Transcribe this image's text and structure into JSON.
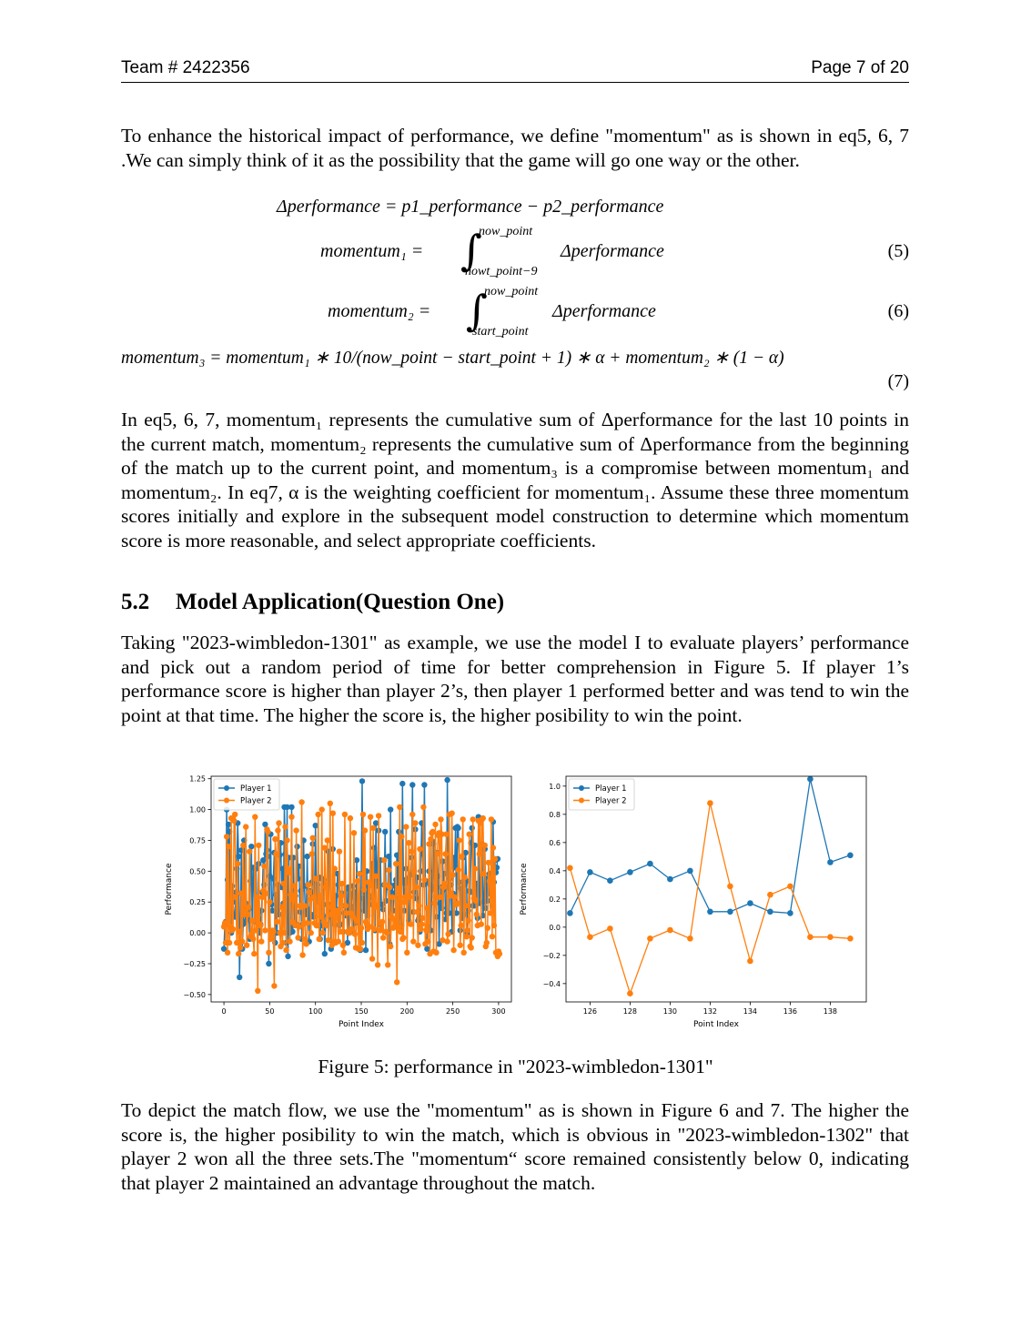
{
  "header": {
    "left": "Team # 2422356",
    "right": "Page 7 of 20"
  },
  "intro": "To enhance the historical impact of performance, we define \"momentum\" as is shown in eq5, 6, 7 .We can simply think of it as the possibility that the game will go one way or the other.",
  "equations": {
    "delta": "Δperformance = p1_performance − p2_performance",
    "m1_lhs": "momentum₁ =",
    "m1_upper": "now_point",
    "m1_lower": "nowt_point−9",
    "m1_rhs": "Δperformance",
    "m1_num": "(5)",
    "m2_lhs": "momentum₂ =",
    "m2_upper": "now_point",
    "m2_lower": "start_point",
    "m2_rhs": "Δperformance",
    "m2_num": "(6)",
    "m3": "momentum₃ = momentum₁ ∗ 10/(now_point − start_point + 1) ∗ α + momentum₂ ∗ (1 − α)",
    "m3_num": "(7)"
  },
  "explain": "In eq5, 6, 7, momentum₁ represents the cumulative sum of Δperformance for the last 10 points in the current match, momentum₂ represents the cumulative sum of Δperformance from the beginning of the match up to the current point, and momentum₃ is a compromise between momentum₁ and momentum₂. In eq7, α is the weighting coefficient for momentum₁. Assume these three momentum scores initially and explore in the subsequent model construction to determine which momentum score is more reasonable, and select appropriate coefficients.",
  "section": {
    "number": "5.2",
    "title": "Model Application(Question One)"
  },
  "application": "Taking \"2023-wimbledon-1301\" as example, we use the model I to evaluate players’ performance and pick out a random period of time for better comprehension in Figure 5. If player 1’s performance score is higher than player 2’s, then player 1 performed better and was tend to win the point at that time. The higher the score is, the higher posibility to win the point.",
  "caption": "Figure 5: performance in \"2023-wimbledon-1301\"",
  "closing": "To depict the match flow, we use the \"momentum\" as is shown in Figure 6 and 7. The higher the score is, the higher posibility to win the match, which is obvious in \"2023-wimbledon-1302\" that player 2 won all the three sets.The \"momentum“ score remained consistently below 0, indicating that player 2 maintained an advantage throughout the match.",
  "colors": {
    "player1": "#1f77b4",
    "player2": "#ff7f0e"
  },
  "chart_data": [
    {
      "type": "line",
      "xlabel": "Point Index",
      "ylabel": "Performance",
      "xlim": [
        -14,
        314
      ],
      "ylim": [
        -0.56,
        1.27
      ],
      "xticks": [
        0,
        50,
        100,
        150,
        200,
        250,
        300
      ],
      "yticks": [
        -0.5,
        -0.25,
        0.0,
        0.25,
        0.5,
        0.75,
        1.0,
        1.25
      ],
      "ytick_labels": [
        "−0.50",
        "−0.25",
        "0.00",
        "0.25",
        "0.50",
        "0.75",
        "1.00",
        "1.25"
      ],
      "legend": "top-left",
      "series": [
        {
          "name": "Player 1",
          "x_start": 0,
          "values": [
            -0.13,
            0.07,
            0.09,
            1.0,
            0.43,
            0.88,
            0.82,
            0.11,
            0.0,
            0.38,
            0.25,
            0.14,
            0.13,
            0.33,
            0.52,
            0.89,
            0.62,
            -0.36,
            0.07,
            0.67,
            -0.13,
            0.07,
            0.75,
            0.09,
            0.24,
            0.18,
            0.11,
            0.19,
            -0.05,
            0.42,
            0.7,
            -0.04,
            0.53,
            0.4,
            0.09,
            0.52,
            0.19,
            0.16,
            0.56,
            0.0,
            0.07,
            0.18,
            0.33,
            0.59,
            0.39,
            0.88,
            0.64,
            0.67,
            0.62,
            -0.25,
            0.46,
            0.8,
            0.23,
            0.18,
            0.44,
            0.65,
            -0.08,
            0.31,
            -0.0,
            0.39,
            0.15,
            0.63,
            0.73,
            0.37,
            0.52,
            0.24,
            1.02,
            0.64,
            -0.08,
            1.02,
            -0.19,
            0.61,
            0.0,
            0.04,
            1.02,
            0.01,
            0.61,
            0.09,
            0.3,
            0.07,
            0.7,
            0.44,
            0.54,
            0.17,
            0.34,
            -0.05,
            0.07,
            0.75,
            0.38,
            0.15,
            0.16,
            0.62,
            0.19,
            -0.07,
            0.34,
            0.15,
            0.41,
            0.72,
            0.13,
            0.32,
            0.87,
            0.25,
            0.39,
            0.28,
            0.45,
            -0.05,
            0.06,
            0.44,
            0.14,
            0.43,
            -0.17,
            0.07,
            0.23,
            0.39,
            0.66,
            0.23,
            0.2,
            -0.13,
            0.12,
            0.68,
            0.09,
            0.07,
            0.3,
            0.19,
            0.48,
            0.39,
            0.06,
            0.07,
            0.32,
            0.32,
            0.01,
            0.16,
            0.22,
            0.14,
            0.36,
            -0.08,
            0.37,
            -0.0,
            0.22,
            0.19,
            0.31,
            0.38,
            0.0,
            0.33,
            0.08,
            0.59,
            0.25,
            0.23,
            0.28,
            -0.14,
            0.48,
            1.23,
            0.28,
            0.18,
            0.33,
            -0.14,
            0.5,
            0.14,
            0.38,
            0.23,
            0.29,
            0.3,
            0.56,
            0.38,
            0.69,
            0.02,
            0.89,
            0.38,
            0.53,
            0.83,
            0.07,
            0.59,
            0.23,
            0.23,
            0.19,
            0.39,
            0.82,
            0.26,
            0.37,
            0.37,
            0.62,
            -0.09,
            1.0,
            0.12,
            0.38,
            0.18,
            0.32,
            0.39,
            0.43,
            0.63,
            0.28,
            0.82,
            0.21,
            0.01,
            0.06,
            1.21,
            0.43,
            0.18,
            0.4,
            0.52,
            0.41,
            0.44,
            0.1,
            0.17,
            0.47,
            0.61,
            1.2,
            0.17,
            0.33,
            0.84,
            0.28,
            0.45,
            0.1,
            0.12,
            0.01,
            0.5,
            0.89,
            0.64,
            0.39,
            1.2,
            0.41,
            0.42,
            -0.13,
            0.05,
            0.5,
            0.39,
            0.02,
            0.35,
            0.74,
            0.72,
            0.37,
            0.29,
            0.13,
            0.65,
            0.46,
            -0.09,
            0.24,
            0.37,
            0.2,
            0.58,
            0.35,
            0.48,
            0.11,
            0.16,
            1.24,
            0.37,
            0.16,
            0.44,
            0.39,
            0.01,
            0.32,
            0.61,
            0.53,
            0.85,
            0.16,
            0.86,
            0.85,
            0.41,
            0.02,
            0.36,
            0.12,
            0.61,
            0.15,
            0.39,
            0.65,
            0.42,
            0.0,
            0.18,
            0.34,
            0.33,
            0.73,
            0.85,
            0.22,
            0.22,
            0.71,
            0.26,
            0.4,
            0.12,
            0.94,
            0.24,
            0.38,
            0.7,
            0.72,
            0.14,
            0.25,
            0.68,
            0.2,
            0.44,
            0.26,
            0.32,
            0.48,
            0.44,
            0.37,
            0.22,
            0.9,
            0.41,
            0.59,
            0.49,
            0.53,
            0.6
          ]
        },
        {
          "name": "Player 2",
          "x_start": 0,
          "values": [
            0.05,
            0.08,
            -0.08,
            0.78,
            -0.16,
            0.7,
            -0.08,
            0.05,
            0.93,
            0.02,
            0.03,
            0.91,
            0.96,
            0.29,
            -0.08,
            0.56,
            -0.17,
            0.01,
            -0.12,
            0.32,
            -0.07,
            0.71,
            0.15,
            0.19,
            0.86,
            -0.1,
            0.15,
            0.21,
            0.66,
            -0.03,
            -0.01,
            0.1,
            -0.05,
            -0.17,
            0.94,
            0.02,
            0.29,
            -0.47,
            0.71,
            0.07,
            0.06,
            -0.07,
            0.29,
            0.34,
            0.54,
            0.02,
            0.32,
            0.84,
            0.82,
            -0.16,
            0.25,
            -0.05,
            -0.03,
            0.02,
            0.01,
            -0.43,
            0.76,
            0.64,
            0.09,
            0.83,
            0.89,
            -0.0,
            -0.11,
            0.21,
            -0.08,
            0.4,
            -0.0,
            0.86,
            -0.14,
            0.75,
            0.52,
            0.49,
            -0.07,
            0.31,
            0.94,
            0.09,
            0.27,
            0.38,
            0.06,
            0.83,
            0.06,
            -0.04,
            0.05,
            0.22,
            0.21,
            1.06,
            -0.18,
            0.08,
            0.22,
            -0.05,
            -0.09,
            0.08,
            0.39,
            0.33,
            0.27,
            0.0,
            0.64,
            0.77,
            0.29,
            0.08,
            0.44,
            0.06,
            0.06,
            0.96,
            -0.05,
            0.3,
            0.13,
            1.0,
            0.0,
            0.09,
            0.69,
            0.37,
            0.06,
            0.75,
            -0.06,
            0.21,
            1.05,
            0.15,
            -0.1,
            0.97,
            -0.07,
            0.52,
            -0.08,
            0.16,
            0.18,
            -0.07,
            0.66,
            0.01,
            0.3,
            0.4,
            -0.1,
            -0.16,
            0.96,
            0.22,
            0.16,
            0.01,
            0.0,
            0.0,
            0.93,
            0.16,
            0.03,
            0.13,
            0.81,
            -0.01,
            -0.12,
            0.1,
            0.42,
            -0.13,
            0.48,
            -0.13,
            0.04,
            -0.08,
            0.96,
            0.35,
            0.83,
            0.09,
            0.07,
            0.03,
            0.41,
            0.05,
            0.94,
            0.39,
            -0.21,
            0.85,
            0.03,
            0.23,
            0.46,
            0.21,
            -0.26,
            0.95,
            0.08,
            0.02,
            0.03,
            0.09,
            -0.04,
            0.59,
            0.39,
            0.01,
            0.0,
            -0.26,
            0.51,
            0.37,
            -0.11,
            0.13,
            0.29,
            0.04,
            0.11,
            0.06,
            0.56,
            -0.4,
            0.36,
            0.05,
            1.02,
            0.01,
            0.78,
            -0.05,
            -0.04,
            0.25,
            0.29,
            0.86,
            -0.16,
            0.3,
            0.73,
            0.29,
            0.07,
            0.66,
            0.96,
            -0.07,
            0.5,
            0.89,
            0.37,
            0.17,
            -0.1,
            0.22,
            0.68,
            0.03,
            0.07,
            0.12,
            1.02,
            0.43,
            -0.09,
            0.02,
            0.2,
            -0.07,
            0.72,
            -0.17,
            0.76,
            0.81,
            0.82,
            -0.15,
            0.24,
            0.88,
            -0.16,
            0.64,
            0.79,
            0.81,
            0.29,
            0.92,
            0.8,
            -0.06,
            0.37,
            0.4,
            0.64,
            0.8,
            -0.07,
            -0.01,
            0.96,
            0.3,
            0.32,
            0.97,
            0.47,
            -0.14,
            0.29,
            0.23,
            0.23,
            0.24,
            0.51,
            0.75,
            -0.1,
            0.06,
            0.62,
            0.92,
            -0.16,
            0.45,
            0.22,
            -0.03,
            0.02,
            0.1,
            0.8,
            -0.11,
            -0.12,
            -0.04,
            0.92,
            0.28,
            0.52,
            0.26,
            0.15,
            0.06,
            0.91,
            0.64,
            0.89,
            0.07,
            0.92,
            0.93,
            0.48,
            0.71,
            -0.11,
            -0.08,
            0.04,
            0.57,
            0.42,
            0.16,
            0.92,
            -0.03,
            0.69,
            0.06,
            0.6,
            -0.16,
            -0.16,
            -0.19,
            -0.15,
            -0.17
          ]
        }
      ]
    },
    {
      "type": "line",
      "xlabel": "Point Index",
      "ylabel": "Performance",
      "xlim": [
        124.8,
        139.8
      ],
      "ylim": [
        -0.53,
        1.07
      ],
      "xticks": [
        126,
        128,
        130,
        132,
        134,
        136,
        138
      ],
      "yticks": [
        -0.4,
        -0.2,
        0.0,
        0.2,
        0.4,
        0.6,
        0.8,
        1.0
      ],
      "ytick_labels": [
        "−0.4",
        "−0.2",
        "0.0",
        "0.2",
        "0.4",
        "0.6",
        "0.8",
        "1.0"
      ],
      "legend": "top-left",
      "series": [
        {
          "name": "Player 1",
          "x": [
            125,
            126,
            127,
            128,
            129,
            130,
            131,
            132,
            133,
            134,
            135,
            136,
            137,
            138,
            139
          ],
          "values": [
            0.1,
            0.39,
            0.33,
            0.39,
            0.45,
            0.34,
            0.4,
            0.11,
            0.11,
            0.17,
            0.11,
            0.1,
            1.05,
            0.46,
            0.51
          ]
        },
        {
          "name": "Player 2",
          "x": [
            125,
            126,
            127,
            128,
            129,
            130,
            131,
            132,
            133,
            134,
            135,
            136,
            137,
            138,
            139
          ],
          "values": [
            0.42,
            -0.07,
            -0.01,
            -0.47,
            -0.08,
            -0.02,
            -0.08,
            0.88,
            0.29,
            -0.24,
            0.23,
            0.29,
            -0.07,
            -0.07,
            -0.08
          ]
        }
      ]
    }
  ]
}
